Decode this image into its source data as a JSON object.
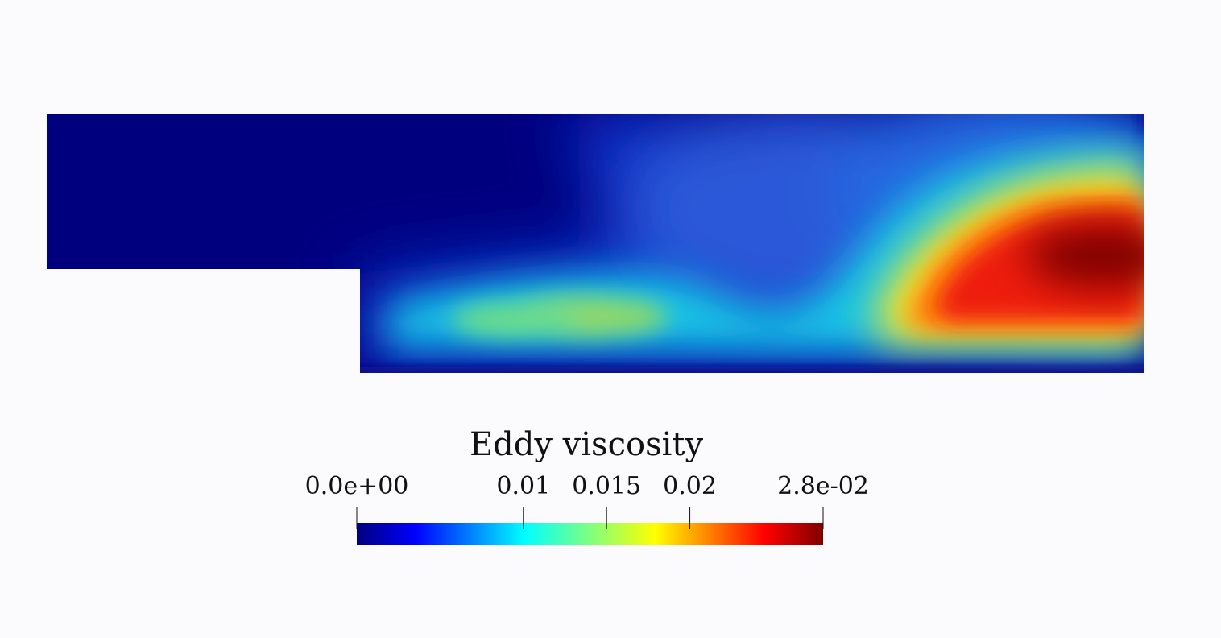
{
  "chart_data": {
    "type": "heatmap",
    "title": "",
    "field_name": "Eddy viscosity",
    "colormap": "jet",
    "colormap_stops": [
      "#00007f",
      "#0000ff",
      "#00ffff",
      "#7fff7f",
      "#ffff00",
      "#ff0000",
      "#7f0000"
    ],
    "domain": "backward-facing step channel",
    "range": [
      0.0,
      0.028
    ],
    "colorbar": {
      "title": "Eddy viscosity",
      "min_label": "0.0e+00",
      "max_label": "2.8e-02",
      "ticks": [
        {
          "value": 0.0,
          "label": "0.0e+00"
        },
        {
          "value": 0.01,
          "label": "0.01"
        },
        {
          "value": 0.015,
          "label": "0.015"
        },
        {
          "value": 0.02,
          "label": "0.02"
        },
        {
          "value": 0.028,
          "label": "2.8e-02"
        }
      ]
    }
  }
}
